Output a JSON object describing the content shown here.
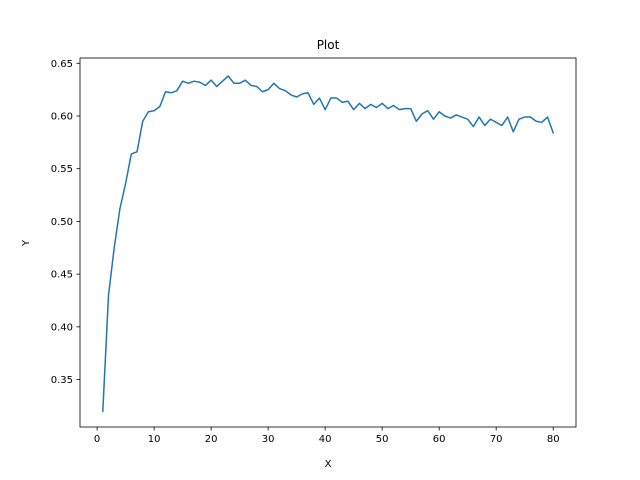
{
  "chart_data": {
    "type": "line",
    "title": "Plot",
    "xlabel": "X",
    "ylabel": "Y",
    "xlim": [
      -3,
      84
    ],
    "ylim": [
      0.305,
      0.655
    ],
    "xticks": [
      0,
      10,
      20,
      30,
      40,
      50,
      60,
      70,
      80
    ],
    "xtick_labels": [
      "0",
      "10",
      "20",
      "30",
      "40",
      "50",
      "60",
      "70",
      "80"
    ],
    "yticks": [
      0.35,
      0.4,
      0.45,
      0.5,
      0.55,
      0.6,
      0.65
    ],
    "ytick_labels": [
      "0.35",
      "0.40",
      "0.45",
      "0.50",
      "0.55",
      "0.60",
      "0.65"
    ],
    "grid": false,
    "series": [
      {
        "color": "#1f77b4",
        "x": [
          1,
          2,
          3,
          4,
          5,
          6,
          7,
          8,
          9,
          10,
          11,
          12,
          13,
          14,
          15,
          16,
          17,
          18,
          19,
          20,
          21,
          22,
          23,
          24,
          25,
          26,
          27,
          28,
          29,
          30,
          31,
          32,
          33,
          34,
          35,
          36,
          37,
          38,
          39,
          40,
          41,
          42,
          43,
          44,
          45,
          46,
          47,
          48,
          49,
          50,
          51,
          52,
          53,
          54,
          55,
          56,
          57,
          58,
          59,
          60,
          61,
          62,
          63,
          64,
          65,
          66,
          67,
          68,
          69,
          70,
          71,
          72,
          73,
          74,
          75,
          76,
          77,
          78,
          79,
          80
        ],
        "y": [
          0.32,
          0.43,
          0.475,
          0.512,
          0.536,
          0.564,
          0.566,
          0.595,
          0.604,
          0.605,
          0.609,
          0.623,
          0.622,
          0.624,
          0.633,
          0.631,
          0.633,
          0.632,
          0.629,
          0.634,
          0.628,
          0.633,
          0.638,
          0.631,
          0.631,
          0.634,
          0.629,
          0.628,
          0.623,
          0.625,
          0.631,
          0.626,
          0.624,
          0.62,
          0.618,
          0.621,
          0.622,
          0.611,
          0.617,
          0.606,
          0.617,
          0.617,
          0.613,
          0.614,
          0.606,
          0.612,
          0.607,
          0.611,
          0.608,
          0.612,
          0.607,
          0.61,
          0.606,
          0.607,
          0.607,
          0.595,
          0.602,
          0.605,
          0.597,
          0.604,
          0.6,
          0.598,
          0.601,
          0.599,
          0.597,
          0.59,
          0.599,
          0.591,
          0.597,
          0.594,
          0.591,
          0.599,
          0.585,
          0.597,
          0.599,
          0.599,
          0.595,
          0.594,
          0.599,
          0.584
        ]
      }
    ]
  }
}
